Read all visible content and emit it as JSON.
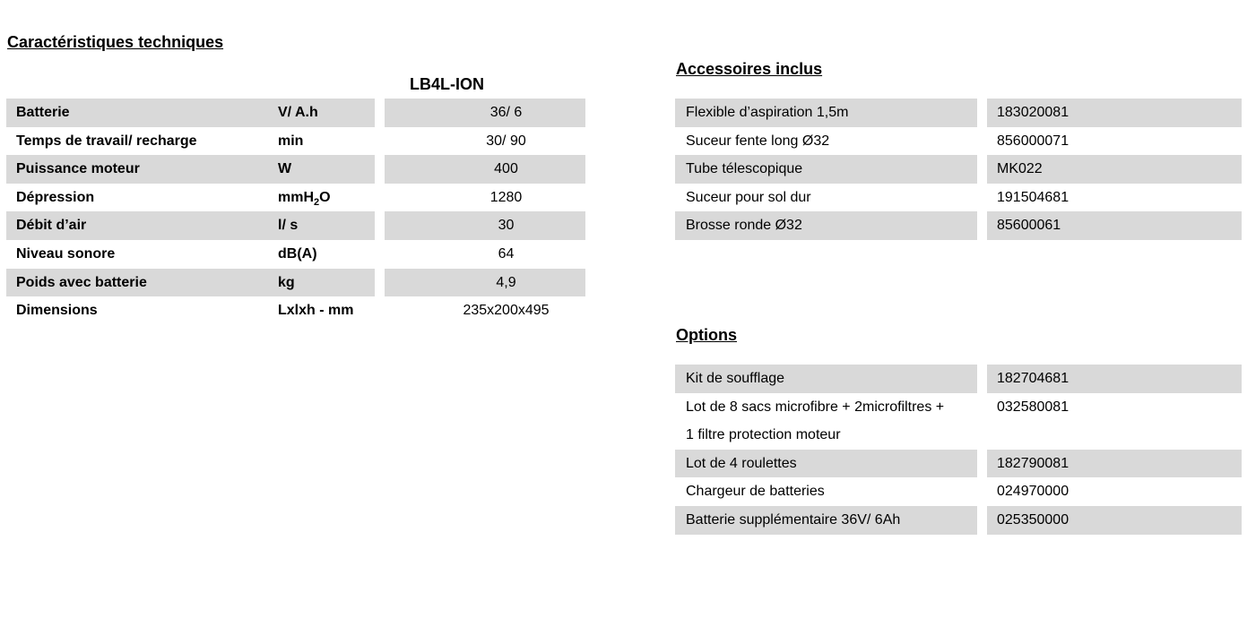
{
  "page": {
    "background_color": "#ffffff",
    "text_color": "#000000",
    "row_fill_color": "#d9d9d9"
  },
  "spec_section": {
    "title": "Caractéristiques techniques",
    "product_header": "LB4L-ION",
    "rows": [
      {
        "label": "Batterie",
        "unit": "V/ A.h",
        "value": "36/ 6"
      },
      {
        "label": "Temps de travail/ recharge",
        "unit": "min",
        "value": "30/ 90"
      },
      {
        "label": "Puissance moteur",
        "unit": "W",
        "value": "400"
      },
      {
        "label": "Dépression",
        "unit_parts": {
          "base": "mmH",
          "sub": "2",
          "tail": "O"
        },
        "value": "1280"
      },
      {
        "label": "Débit d’air",
        "unit": "l/ s",
        "value": "30"
      },
      {
        "label": "Niveau sonore",
        "unit": "dB(A)",
        "value": "64"
      },
      {
        "label": "Poids avec batterie",
        "unit": "kg",
        "value": "4,9"
      },
      {
        "label": "Dimensions",
        "unit": "Lxlxh - mm",
        "value": "235x200x495"
      }
    ]
  },
  "accessories_section": {
    "title": "Accessoires inclus",
    "rows": [
      {
        "label": "Flexible d’aspiration 1,5m",
        "ref": "183020081"
      },
      {
        "label": "Suceur fente long Ø32",
        "ref": "856000071"
      },
      {
        "label": "Tube télescopique",
        "ref": "MK022"
      },
      {
        "label": "Suceur pour sol dur",
        "ref": "191504681"
      },
      {
        "label": "Brosse ronde Ø32",
        "ref": "85600061"
      }
    ]
  },
  "options_section": {
    "title": "Options",
    "rows": [
      {
        "label": "Kit de soufflage",
        "ref": "182704681"
      },
      {
        "label_lines": [
          "Lot de 8 sacs microfibre + 2microfiltres +",
          "1 filtre protection moteur"
        ],
        "ref": "032580081"
      },
      {
        "label": "Lot de 4 roulettes",
        "ref": "182790081"
      },
      {
        "label": "Chargeur de batteries",
        "ref": "024970000"
      },
      {
        "label": "Batterie supplémentaire 36V/ 6Ah",
        "ref": "025350000"
      }
    ]
  }
}
